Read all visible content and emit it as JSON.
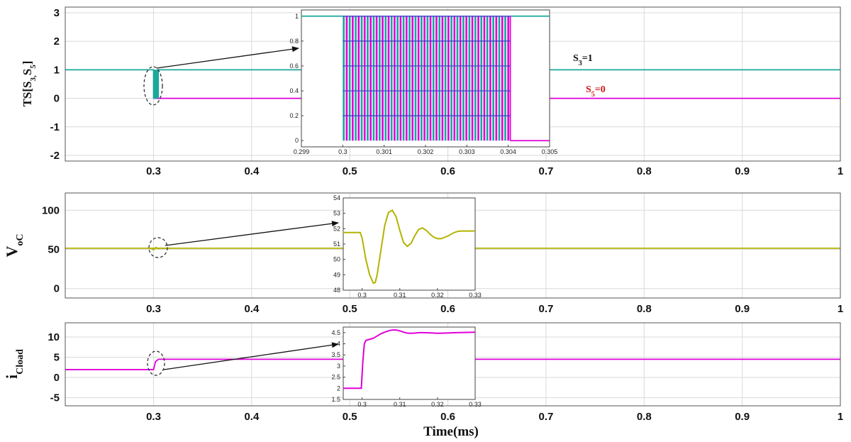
{
  "figure": {
    "xlabel": "Time(ms)"
  },
  "colors": {
    "teal": "#1aa89c",
    "magenta": "#e000d8",
    "olive": "#b3b300",
    "blue": "#3c3cc8",
    "annoRed": "#d01818",
    "annoBlack": "#111111",
    "grid": "#d9d9d9",
    "axis": "#555555"
  },
  "chart_data": [
    {
      "id": "ts",
      "type": "line",
      "ylabel": "TS[S",
      "ylabel_sub": "3,",
      "ylabel_mid": "S",
      "ylabel_sub2": "5",
      "ylabel_end": "]",
      "xlim": [
        0.21,
        1.0
      ],
      "ylim": [
        -2.2,
        3.2
      ],
      "xticks": [
        0.3,
        0.4,
        0.5,
        0.6,
        0.7,
        0.8,
        0.9,
        1.0
      ],
      "xtick_labels": [
        "0.3",
        "0.4",
        "0.5",
        "0.6",
        "0.7",
        "0.8",
        "0.9",
        "1"
      ],
      "yticks": [
        -2,
        -1,
        0,
        1,
        2,
        3
      ],
      "ytick_labels": [
        "-2",
        "-1",
        "0",
        "1",
        "2",
        "3"
      ],
      "series": [
        {
          "name": "S3",
          "color_key": "teal",
          "x": [
            0.21,
            0.3,
            0.3,
            0.304,
            0.304,
            1.0
          ],
          "y": [
            1,
            1,
            0,
            0,
            1,
            1
          ]
        },
        {
          "name": "S5",
          "color_key": "magenta",
          "x": [
            0.302,
            1.0
          ],
          "y": [
            0,
            0
          ]
        }
      ],
      "annotations": [
        {
          "label": "S",
          "sub": "3",
          "rest": "=1",
          "color_key": "annoBlack",
          "x": 0.78,
          "y": 1.3
        },
        {
          "label": "S",
          "sub": "5",
          "rest": "=0",
          "color_key": "annoRed",
          "x": 0.8,
          "y": 0.25
        }
      ],
      "inset": {
        "xlim": [
          0.299,
          0.305
        ],
        "ylim": [
          -0.05,
          1.05
        ],
        "xticks": [
          0.299,
          0.3,
          0.301,
          0.302,
          0.303,
          0.304,
          0.305
        ],
        "xtick_labels": [
          "0.299",
          "0.3",
          "0.301",
          "0.302",
          "0.303",
          "0.304",
          "0.305"
        ],
        "yticks": [
          0,
          0.2,
          0.4,
          0.6,
          0.8,
          1
        ],
        "ytick_labels": [
          "0",
          "0.2",
          "0.4",
          "0.6",
          "0.8",
          "1"
        ],
        "pulse_start": 0.3,
        "pulse_end": 0.30405,
        "pulses": 28
      }
    },
    {
      "id": "voc",
      "type": "line",
      "ylabel": "V",
      "ylabel_sub": "oC",
      "xlim": [
        0.21,
        1.0
      ],
      "ylim": [
        -12,
        122
      ],
      "xticks": [
        0.3,
        0.4,
        0.5,
        0.6,
        0.7,
        0.8,
        0.9,
        1.0
      ],
      "xtick_labels": [
        "0.3",
        "0.4",
        "0.5",
        "0.6",
        "0.7",
        "0.8",
        "0.9",
        "1"
      ],
      "yticks": [
        0,
        50,
        100
      ],
      "ytick_labels": [
        "0",
        "50",
        "100"
      ],
      "series": [
        {
          "name": "VoC",
          "color_key": "olive",
          "level": 51.5
        }
      ],
      "inset": {
        "xlim": [
          0.295,
          0.33
        ],
        "ylim": [
          48,
          54
        ],
        "xticks": [
          0.3,
          0.31,
          0.32,
          0.33
        ],
        "xtick_labels": [
          "0.3",
          "0.31",
          "0.32",
          "0.33"
        ],
        "yticks": [
          48,
          49,
          50,
          51,
          52,
          53,
          54
        ],
        "ytick_labels": [
          "48",
          "49",
          "50",
          "51",
          "52",
          "53",
          "54"
        ],
        "x": [
          0.295,
          0.2995,
          0.3,
          0.301,
          0.302,
          0.303,
          0.3035,
          0.304,
          0.305,
          0.306,
          0.307,
          0.308,
          0.309,
          0.31,
          0.311,
          0.312,
          0.313,
          0.314,
          0.315,
          0.316,
          0.317,
          0.318,
          0.319,
          0.32,
          0.321,
          0.322,
          0.323,
          0.324,
          0.325,
          0.326,
          0.327,
          0.328,
          0.329,
          0.33
        ],
        "y": [
          51.75,
          51.75,
          51.4,
          50.0,
          49.0,
          48.45,
          48.5,
          49.0,
          50.6,
          52.2,
          53.05,
          53.2,
          52.8,
          51.9,
          51.1,
          50.85,
          51.05,
          51.55,
          51.95,
          52.05,
          51.9,
          51.65,
          51.45,
          51.35,
          51.35,
          51.45,
          51.55,
          51.7,
          51.8,
          51.85,
          51.85,
          51.85,
          51.85,
          51.85
        ]
      }
    },
    {
      "id": "icload",
      "type": "line",
      "ylabel": "i",
      "ylabel_sub": "Cload",
      "xlim": [
        0.21,
        1.0
      ],
      "ylim": [
        -7,
        13.5
      ],
      "xticks": [
        0.3,
        0.4,
        0.5,
        0.6,
        0.7,
        0.8,
        0.9,
        1.0
      ],
      "xtick_labels": [
        "0.3",
        "0.4",
        "0.5",
        "0.6",
        "0.7",
        "0.8",
        "0.9",
        "1"
      ],
      "yticks": [
        -5,
        0,
        5,
        10
      ],
      "ytick_labels": [
        "-5",
        "0",
        "5",
        "10"
      ],
      "series": [
        {
          "name": "iCload",
          "color_key": "magenta",
          "x": [
            0.21,
            0.3,
            0.302,
            0.305,
            1.0
          ],
          "y": [
            1.95,
            1.95,
            3.9,
            4.5,
            4.5
          ]
        }
      ],
      "inset": {
        "xlim": [
          0.295,
          0.33
        ],
        "ylim": [
          1.5,
          4.75
        ],
        "xticks": [
          0.3,
          0.31,
          0.32,
          0.33
        ],
        "xtick_labels": [
          "0.3",
          "0.31",
          "0.32",
          "0.33"
        ],
        "yticks": [
          1.5,
          2,
          2.5,
          3,
          3.5,
          4,
          4.5
        ],
        "ytick_labels": [
          "1.5",
          "2",
          "2.5",
          "3",
          "3.5",
          "4",
          "4.5"
        ],
        "x": [
          0.295,
          0.2998,
          0.3002,
          0.3006,
          0.301,
          0.302,
          0.303,
          0.304,
          0.305,
          0.306,
          0.307,
          0.308,
          0.309,
          0.31,
          0.311,
          0.312,
          0.313,
          0.314,
          0.315,
          0.316,
          0.318,
          0.32,
          0.322,
          0.325,
          0.33
        ],
        "y": [
          2.0,
          2.0,
          3.2,
          4.0,
          4.15,
          4.2,
          4.25,
          4.35,
          4.45,
          4.52,
          4.58,
          4.62,
          4.62,
          4.58,
          4.52,
          4.48,
          4.47,
          4.48,
          4.5,
          4.5,
          4.49,
          4.47,
          4.48,
          4.5,
          4.52
        ]
      }
    }
  ]
}
